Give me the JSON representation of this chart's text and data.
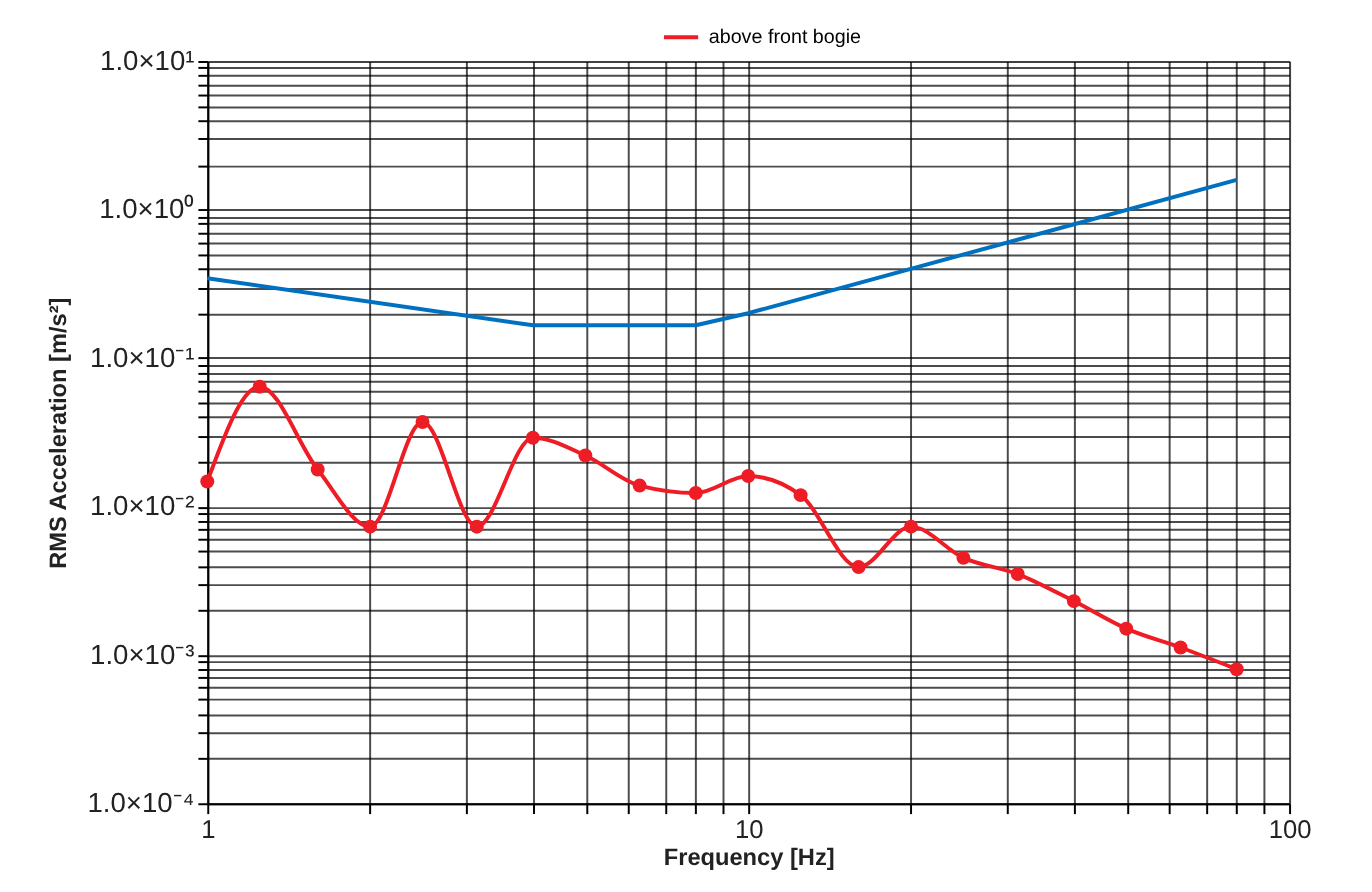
{
  "chart_data": {
    "type": "line",
    "xlabel": "Frequency [Hz]",
    "ylabel": "RMS Acceleration [m/s²]",
    "log": "xy",
    "grid": true,
    "legend": "top",
    "xlim": [
      1,
      100
    ],
    "ylim": [
      0.0001,
      10
    ],
    "xticks": [
      1,
      {
        "value": 2,
        "label": null
      },
      {
        "value": 3,
        "label": null
      },
      {
        "value": 4,
        "label": null
      },
      {
        "value": 5,
        "label": null
      },
      {
        "value": 6,
        "label": null
      },
      {
        "value": 7,
        "label": null
      },
      {
        "value": 8,
        "label": null
      },
      {
        "value": 9,
        "label": null
      },
      10,
      {
        "value": 20,
        "label": null
      },
      {
        "value": 30,
        "label": null
      },
      {
        "value": 40,
        "label": null
      },
      {
        "value": 50,
        "label": null
      },
      {
        "value": 60,
        "label": null
      },
      {
        "value": 70,
        "label": null
      },
      {
        "value": 80,
        "label": null
      },
      {
        "value": 90,
        "label": null
      },
      100
    ],
    "yticks": [
      {
        "value": 0.0001,
        "label": "1.0×10⁻⁴"
      },
      {
        "value": 0.0002,
        "label": null
      },
      {
        "value": 0.0003,
        "label": null
      },
      {
        "value": 0.0004,
        "label": null
      },
      {
        "value": 0.0005,
        "label": null
      },
      {
        "value": 0.0006,
        "label": null
      },
      {
        "value": 0.0007,
        "label": null
      },
      {
        "value": 0.0008,
        "label": null
      },
      {
        "value": 0.0009,
        "label": null
      },
      {
        "value": 0.001,
        "label": "1.0×10⁻³"
      },
      {
        "value": 0.002,
        "label": null
      },
      {
        "value": 0.003,
        "label": null
      },
      {
        "value": 0.004,
        "label": null
      },
      {
        "value": 0.005,
        "label": null
      },
      {
        "value": 0.006,
        "label": null
      },
      {
        "value": 0.007,
        "label": null
      },
      {
        "value": 0.008,
        "label": null
      },
      {
        "value": 0.009,
        "label": null
      },
      {
        "value": 0.01,
        "label": "1.0×10⁻²"
      },
      {
        "value": 0.02,
        "label": null
      },
      {
        "value": 0.03,
        "label": null
      },
      {
        "value": 0.04,
        "label": null
      },
      {
        "value": 0.05,
        "label": null
      },
      {
        "value": 0.06,
        "label": null
      },
      {
        "value": 0.07,
        "label": null
      },
      {
        "value": 0.08,
        "label": null
      },
      {
        "value": 0.09,
        "label": null
      },
      {
        "value": 0.1,
        "label": "1.0×10⁻¹"
      },
      {
        "value": 0.2,
        "label": null
      },
      {
        "value": 0.3,
        "label": null
      },
      {
        "value": 0.4,
        "label": null
      },
      {
        "value": 0.5,
        "label": null
      },
      {
        "value": 0.6,
        "label": null
      },
      {
        "value": 0.7,
        "label": null
      },
      {
        "value": 0.8,
        "label": null
      },
      {
        "value": 0.9,
        "label": null
      },
      {
        "value": 1,
        "label": "1.0×10⁰"
      },
      {
        "value": 2,
        "label": null
      },
      {
        "value": 3,
        "label": null
      },
      {
        "value": 4,
        "label": null
      },
      {
        "value": 5,
        "label": null
      },
      {
        "value": 6,
        "label": null
      },
      {
        "value": 7,
        "label": null
      },
      {
        "value": 8,
        "label": null
      },
      {
        "value": 9,
        "label": null
      },
      {
        "value": 10,
        "label": "1.0×10¹"
      }
    ],
    "series": [
      {
        "name": "above front bogie",
        "color": "#ee1c25",
        "marker": "circle",
        "x": [
          1,
          1.25,
          1.6,
          2,
          2.5,
          3.15,
          4,
          5,
          6.3,
          8,
          10,
          12.5,
          16,
          20,
          25,
          31.5,
          40,
          50,
          63,
          80
        ],
        "values": [
          0.0147,
          0.064,
          0.0177,
          0.0073,
          0.037,
          0.0073,
          0.029,
          0.022,
          0.0138,
          0.0123,
          0.016,
          0.0119,
          0.0039,
          0.0073,
          0.0045,
          0.0035,
          0.0023,
          0.0015,
          0.00112,
          0.0008
        ]
      },
      {
        "color": "#0070c0",
        "marker": "none",
        "x": [
          1,
          4,
          8,
          10,
          80
        ],
        "values": [
          0.344,
          0.166,
          0.166,
          0.2,
          1.58
        ]
      }
    ]
  }
}
